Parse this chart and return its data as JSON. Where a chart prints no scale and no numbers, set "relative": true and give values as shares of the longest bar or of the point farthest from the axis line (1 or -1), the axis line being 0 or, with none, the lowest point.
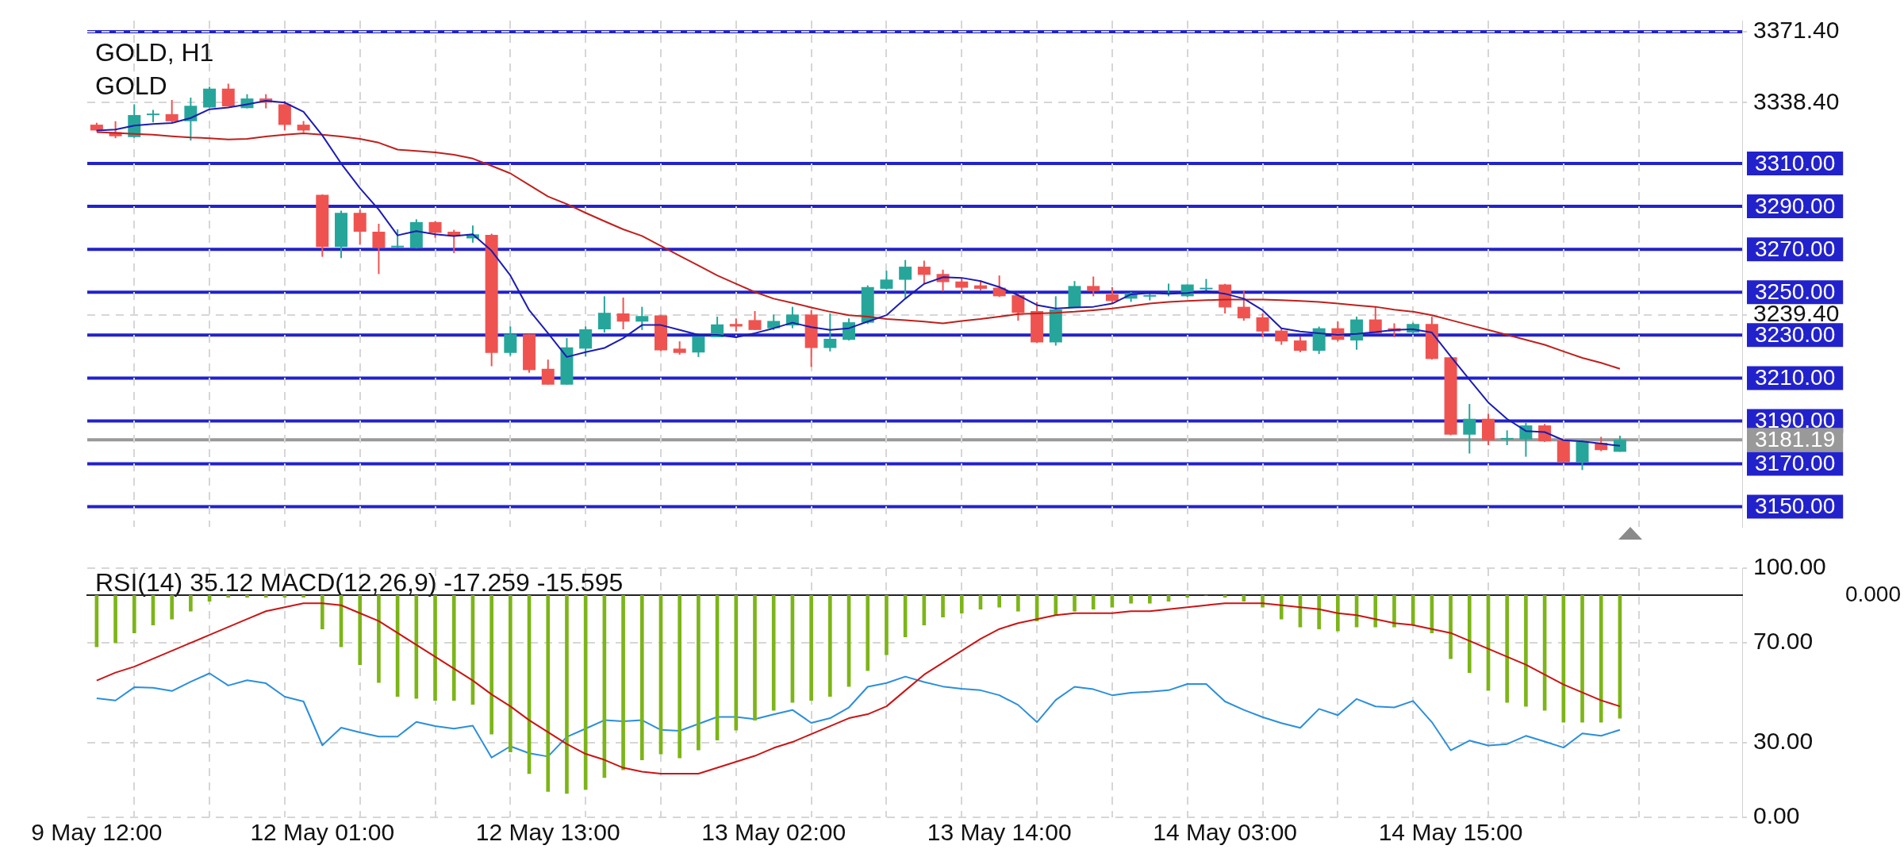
{
  "chart_data": [
    {
      "type": "candlestick",
      "title": "GOLD, H1",
      "subtitle": "GOLD",
      "ohlc": [
        [
          3328.1,
          3329.0,
          3325.0,
          3325.4
        ],
        [
          3324.6,
          3329.7,
          3321.8,
          3322.7
        ],
        [
          3322.3,
          3337.6,
          3322.0,
          3332.6
        ],
        [
          3332.5,
          3335.0,
          3329.2,
          3332.9
        ],
        [
          3333.0,
          3339.6,
          3329.2,
          3329.7
        ],
        [
          3329.7,
          3340.7,
          3320.7,
          3336.9
        ],
        [
          3336.1,
          3345.8,
          3336.0,
          3344.9
        ],
        [
          3344.9,
          3347.2,
          3336.5,
          3336.6
        ],
        [
          3335.8,
          3342.3,
          3335.7,
          3340.3
        ],
        [
          3340.3,
          3342.3,
          3335.7,
          3338.4
        ],
        [
          3337.6,
          3339.2,
          3325.4,
          3328.0
        ],
        [
          3328.1,
          3329.8,
          3324.6,
          3325.4
        ],
        [
          3295.4,
          3295.6,
          3266.5,
          3271.1
        ],
        [
          3271.1,
          3288.0,
          3265.9,
          3287.0
        ],
        [
          3287.0,
          3288.5,
          3272.1,
          3278.2
        ],
        [
          3278.2,
          3281.9,
          3258.5,
          3270.8
        ],
        [
          3271.0,
          3279.3,
          3270.8,
          3271.3
        ],
        [
          3270.8,
          3284.0,
          3270.4,
          3282.7
        ],
        [
          3282.7,
          3283.1,
          3275.4,
          3277.7
        ],
        [
          3278.2,
          3279.1,
          3268.2,
          3276.2
        ],
        [
          3275.1,
          3281.1,
          3273.1,
          3277.0
        ],
        [
          3276.7,
          3277.3,
          3215.5,
          3221.7
        ],
        [
          3221.7,
          3234.0,
          3220.4,
          3230.4
        ],
        [
          3230.4,
          3230.4,
          3212.5,
          3213.7
        ],
        [
          3214.3,
          3218.6,
          3206.9,
          3206.9
        ],
        [
          3206.9,
          3228.6,
          3206.9,
          3224.3
        ],
        [
          3223.7,
          3234.0,
          3220.1,
          3232.7
        ],
        [
          3232.7,
          3248.1,
          3231.2,
          3240.4
        ],
        [
          3240.1,
          3247.5,
          3232.7,
          3236.3
        ],
        [
          3236.3,
          3243.2,
          3232.4,
          3238.9
        ],
        [
          3239.2,
          3239.5,
          3222.6,
          3222.9
        ],
        [
          3223.7,
          3227.1,
          3220.9,
          3221.7
        ],
        [
          3221.9,
          3229.4,
          3219.8,
          3229.4
        ],
        [
          3229.0,
          3238.6,
          3229.0,
          3235.0
        ],
        [
          3235.2,
          3237.8,
          3231.7,
          3234.0
        ],
        [
          3237.0,
          3241.2,
          3232.4,
          3232.4
        ],
        [
          3233.2,
          3239.6,
          3232.4,
          3236.6
        ],
        [
          3234.5,
          3243.2,
          3233.2,
          3239.6
        ],
        [
          3239.6,
          3241.6,
          3215.2,
          3224.0
        ],
        [
          3224.0,
          3240.1,
          3222.4,
          3228.3
        ],
        [
          3227.8,
          3237.8,
          3227.5,
          3236.0
        ],
        [
          3235.8,
          3253.2,
          3235.2,
          3252.4
        ],
        [
          3251.6,
          3260.0,
          3251.2,
          3255.9
        ],
        [
          3255.8,
          3265.0,
          3247.0,
          3261.9
        ],
        [
          3261.9,
          3264.7,
          3253.9,
          3258.1
        ],
        [
          3258.5,
          3260.5,
          3250.4,
          3254.7
        ],
        [
          3255.0,
          3256.7,
          3250.6,
          3252.1
        ],
        [
          3253.2,
          3255.5,
          3250.9,
          3251.6
        ],
        [
          3252.1,
          3257.8,
          3247.8,
          3248.1
        ],
        [
          3248.6,
          3249.6,
          3236.7,
          3240.4
        ],
        [
          3241.2,
          3245.5,
          3226.3,
          3226.6
        ],
        [
          3226.6,
          3248.1,
          3225.1,
          3242.0
        ],
        [
          3242.9,
          3255.2,
          3242.9,
          3252.9
        ],
        [
          3252.9,
          3257.3,
          3248.1,
          3250.6
        ],
        [
          3249.0,
          3252.4,
          3244.7,
          3245.9
        ],
        [
          3247.0,
          3250.1,
          3245.5,
          3249.6
        ],
        [
          3248.0,
          3249.3,
          3246.2,
          3248.3
        ],
        [
          3249.1,
          3254.0,
          3248.1,
          3249.4
        ],
        [
          3248.1,
          3253.6,
          3247.8,
          3253.6
        ],
        [
          3251.4,
          3256.2,
          3250.2,
          3251.7
        ],
        [
          3253.6,
          3253.9,
          3240.1,
          3242.9
        ],
        [
          3243.2,
          3250.9,
          3236.7,
          3237.8
        ],
        [
          3238.3,
          3240.1,
          3229.0,
          3231.7
        ],
        [
          3232.1,
          3233.2,
          3225.5,
          3227.1
        ],
        [
          3227.5,
          3229.4,
          3222.0,
          3222.7
        ],
        [
          3222.7,
          3234.0,
          3221.2,
          3233.2
        ],
        [
          3233.2,
          3236.3,
          3227.1,
          3227.8
        ],
        [
          3227.5,
          3238.6,
          3223.2,
          3237.3
        ],
        [
          3237.3,
          3243.2,
          3230.6,
          3230.9
        ],
        [
          3233.2,
          3235.5,
          3229.0,
          3231.7
        ],
        [
          3231.2,
          3235.8,
          3230.6,
          3235.2
        ],
        [
          3235.2,
          3238.6,
          3218.6,
          3218.9
        ],
        [
          3219.7,
          3219.7,
          3183.3,
          3183.6
        ],
        [
          3183.6,
          3197.9,
          3174.8,
          3191.0
        ],
        [
          3191.0,
          3193.3,
          3178.7,
          3181.0
        ],
        [
          3181.4,
          3185.6,
          3178.7,
          3181.7
        ],
        [
          3181.4,
          3189.1,
          3173.3,
          3187.9
        ],
        [
          3187.9,
          3188.6,
          3180.2,
          3180.5
        ],
        [
          3181.0,
          3181.3,
          3170.7,
          3170.7
        ],
        [
          3170.7,
          3181.0,
          3167.1,
          3180.2
        ],
        [
          3179.8,
          3182.6,
          3175.9,
          3176.4
        ],
        [
          3175.6,
          3183.1,
          3175.6,
          3181.2
        ]
      ],
      "series": [
        {
          "type": "line",
          "color": "#1c1cb4",
          "values": [
            3325.4,
            3325.8,
            3327.7,
            3328.4,
            3328.9,
            3331.2,
            3335.3,
            3336.1,
            3337.6,
            3339.2,
            3338.4,
            3334.1,
            3323.1,
            3310.0,
            3298.5,
            3288.5,
            3276.5,
            3278.5,
            3277.0,
            3276.2,
            3277.0,
            3269.3,
            3257.8,
            3241.6,
            3230.9,
            3219.8,
            3222.1,
            3224.0,
            3228.6,
            3234.7,
            3234.7,
            3232.4,
            3230.1,
            3230.1,
            3229.0,
            3230.9,
            3233.2,
            3235.8,
            3233.7,
            3232.4,
            3233.2,
            3236.3,
            3239.3,
            3247.0,
            3253.9,
            3257.0,
            3256.7,
            3255.2,
            3252.4,
            3248.6,
            3244.0,
            3242.4,
            3242.9,
            3243.2,
            3244.7,
            3249.0,
            3249.6,
            3249.3,
            3249.6,
            3250.6,
            3249.3,
            3247.0,
            3241.6,
            3233.2,
            3231.7,
            3230.9,
            3230.1,
            3230.6,
            3231.4,
            3232.4,
            3232.7,
            3231.2,
            3220.1,
            3209.3,
            3198.6,
            3190.9,
            3185.3,
            3184.8,
            3181.0,
            3180.5,
            3179.4,
            3178.4
          ]
        },
        {
          "type": "line",
          "color": "#c0201c",
          "values": [
            3324.6,
            3324.3,
            3323.8,
            3323.4,
            3322.7,
            3322.1,
            3321.8,
            3321.2,
            3321.5,
            3322.6,
            3323.4,
            3324.1,
            3323.4,
            3322.6,
            3321.5,
            3319.7,
            3316.5,
            3315.8,
            3315.2,
            3314.1,
            3312.3,
            3308.9,
            3305.4,
            3300.0,
            3294.6,
            3291.1,
            3287.0,
            3283.1,
            3279.3,
            3276.2,
            3271.6,
            3267.0,
            3262.4,
            3257.8,
            3253.9,
            3250.1,
            3247.0,
            3245.0,
            3242.9,
            3240.9,
            3239.3,
            3238.6,
            3237.5,
            3237.0,
            3236.3,
            3235.5,
            3236.6,
            3237.5,
            3238.6,
            3239.8,
            3240.1,
            3240.4,
            3240.9,
            3241.6,
            3242.4,
            3243.5,
            3244.7,
            3245.5,
            3245.9,
            3246.3,
            3246.6,
            3246.6,
            3246.6,
            3246.3,
            3245.9,
            3245.5,
            3244.7,
            3243.9,
            3243.2,
            3241.9,
            3240.9,
            3239.3,
            3237.0,
            3234.7,
            3232.4,
            3230.1,
            3227.8,
            3225.5,
            3222.4,
            3219.4,
            3217.1,
            3214.3
          ]
        }
      ],
      "ylim": [
        3140.6,
        3376.6
      ],
      "yticks": [
        {
          "value": 3371.4,
          "label": "3371.40"
        },
        {
          "value": 3338.4,
          "label": "3338.40"
        },
        {
          "value": 3239.4,
          "label": "3239.40"
        }
      ],
      "ref_lines": [
        {
          "axis": "y",
          "value": 3371.4,
          "color": "#2222cc"
        },
        {
          "axis": "y",
          "value": 3310,
          "label": "3310.00",
          "color": "#2222cc"
        },
        {
          "axis": "y",
          "value": 3290,
          "label": "3290.00",
          "color": "#2222cc"
        },
        {
          "axis": "y",
          "value": 3270,
          "label": "3270.00",
          "color": "#2222cc"
        },
        {
          "axis": "y",
          "value": 3250,
          "label": "3250.00",
          "color": "#2222cc"
        },
        {
          "axis": "y",
          "value": 3230,
          "label": "3230.00",
          "color": "#2222cc"
        },
        {
          "axis": "y",
          "value": 3210,
          "label": "3210.00",
          "color": "#2222cc"
        },
        {
          "axis": "y",
          "value": 3190,
          "label": "3190.00",
          "color": "#2222cc"
        },
        {
          "axis": "y",
          "value": 3181.19,
          "label": "3181.19",
          "color": "#999999"
        },
        {
          "axis": "y",
          "value": 3170,
          "label": "3170.00",
          "color": "#2222cc"
        },
        {
          "axis": "y",
          "value": 3150,
          "label": "3150.00",
          "color": "#2222cc"
        }
      ],
      "grid": true,
      "tick_labels": "y",
      "marker": "none"
    },
    {
      "type": "line",
      "title": "RSI(14) 35.12 MACD(12,26,9) -17.259 -15.595",
      "categories": [
        "9 May 12:00",
        null,
        null,
        null,
        null,
        null,
        null,
        null,
        null,
        null,
        null,
        null,
        "12 May 01:00",
        null,
        null,
        null,
        null,
        null,
        null,
        null,
        null,
        null,
        null,
        null,
        "12 May 13:00",
        null,
        null,
        null,
        null,
        null,
        null,
        null,
        null,
        null,
        null,
        null,
        "13 May 02:00",
        null,
        null,
        null,
        null,
        null,
        null,
        null,
        null,
        null,
        null,
        null,
        "13 May 14:00",
        null,
        null,
        null,
        null,
        null,
        null,
        null,
        null,
        null,
        null,
        null,
        "14 May 03:00",
        null,
        null,
        null,
        null,
        null,
        null,
        null,
        null,
        null,
        null,
        null,
        "14 May 15:00",
        null,
        null,
        null,
        null,
        null,
        null,
        null,
        null,
        null
      ],
      "series": [
        {
          "type": "line",
          "color": "#2b8fdb",
          "values": [
            47.8,
            46.9,
            52.2,
            52.0,
            50.7,
            54.4,
            57.8,
            52.9,
            55.0,
            53.8,
            48.4,
            46.5,
            28.9,
            36.0,
            34.1,
            32.4,
            32.4,
            38.3,
            36.6,
            35.6,
            36.8,
            24.0,
            28.5,
            25.7,
            24.4,
            32.3,
            35.6,
            39.0,
            38.5,
            39.0,
            35.1,
            34.7,
            37.5,
            40.3,
            40.3,
            39.4,
            41.3,
            43.1,
            37.9,
            39.8,
            44.1,
            52.4,
            53.9,
            56.5,
            54.3,
            52.5,
            51.6,
            51.0,
            49.0,
            45.1,
            38.2,
            47.1,
            52.4,
            51.4,
            49.0,
            50.0,
            50.4,
            51.0,
            53.5,
            53.5,
            46.5,
            43.1,
            40.2,
            37.8,
            35.9,
            43.5,
            41.0,
            47.5,
            44.5,
            44.1,
            46.7,
            38.2,
            26.9,
            30.8,
            28.8,
            29.4,
            32.7,
            30.4,
            28.0,
            33.7,
            32.7,
            35.12
          ]
        }
      ],
      "ylim": [
        0,
        100
      ],
      "yticks": [
        {
          "value": 0,
          "label": "0.00"
        },
        {
          "value": 30,
          "label": "30.00"
        },
        {
          "value": 70,
          "label": "70.00"
        },
        {
          "value": 100,
          "label": "100.00"
        }
      ],
      "grid": true,
      "marker": "none"
    },
    {
      "type": "bar",
      "relative": true,
      "annotations": [
        "0.000"
      ],
      "tick_labels": false,
      "marker": "none",
      "series": [
        {
          "type": "bar",
          "color": "#7cb518",
          "values": [
            -0.26,
            -0.24,
            -0.19,
            -0.15,
            -0.12,
            -0.08,
            -0.03,
            -0.01,
            -0.01,
            -0.01,
            -0.01,
            -0.01,
            -0.17,
            -0.26,
            -0.35,
            -0.44,
            -0.51,
            -0.52,
            -0.53,
            -0.53,
            -0.55,
            -0.7,
            -0.79,
            -0.9,
            -0.99,
            -1,
            -0.98,
            -0.92,
            -0.88,
            -0.83,
            -0.8,
            -0.82,
            -0.78,
            -0.73,
            -0.68,
            -0.63,
            -0.58,
            -0.54,
            -0.53,
            -0.51,
            -0.46,
            -0.38,
            -0.3,
            -0.21,
            -0.15,
            -0.11,
            -0.09,
            -0.07,
            -0.06,
            -0.08,
            -0.13,
            -0.1,
            -0.08,
            -0.07,
            -0.06,
            -0.04,
            -0.04,
            -0.03,
            -0.01,
            0.0,
            -0.01,
            -0.03,
            -0.06,
            -0.12,
            -0.16,
            -0.17,
            -0.18,
            -0.16,
            -0.16,
            -0.16,
            -0.15,
            -0.19,
            -0.32,
            -0.39,
            -0.48,
            -0.54,
            -0.56,
            -0.58,
            -0.64,
            -0.64,
            -0.64,
            -0.62
          ]
        },
        {
          "type": "line",
          "color": "#cc1414",
          "values": [
            -0.43,
            -0.39,
            -0.36,
            -0.32,
            -0.28,
            -0.24,
            -0.2,
            -0.16,
            -0.12,
            -0.08,
            -0.06,
            -0.04,
            -0.04,
            -0.05,
            -0.09,
            -0.13,
            -0.19,
            -0.25,
            -0.31,
            -0.37,
            -0.43,
            -0.5,
            -0.56,
            -0.63,
            -0.69,
            -0.75,
            -0.8,
            -0.83,
            -0.87,
            -0.89,
            -0.9,
            -0.9,
            -0.9,
            -0.87,
            -0.84,
            -0.81,
            -0.77,
            -0.74,
            -0.7,
            -0.66,
            -0.62,
            -0.6,
            -0.56,
            -0.48,
            -0.4,
            -0.34,
            -0.28,
            -0.22,
            -0.17,
            -0.14,
            -0.12,
            -0.1,
            -0.09,
            -0.09,
            -0.09,
            -0.08,
            -0.08,
            -0.07,
            -0.06,
            -0.05,
            -0.04,
            -0.04,
            -0.04,
            -0.05,
            -0.06,
            -0.07,
            -0.09,
            -0.1,
            -0.12,
            -0.14,
            -0.15,
            -0.17,
            -0.19,
            -0.23,
            -0.27,
            -0.31,
            -0.35,
            -0.4,
            -0.45,
            -0.49,
            -0.53,
            -0.56
          ]
        }
      ]
    }
  ]
}
